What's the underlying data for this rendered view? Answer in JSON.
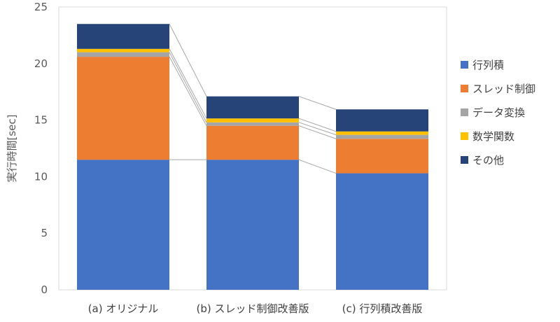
{
  "chart_data": {
    "type": "bar",
    "stacked": true,
    "categories": [
      "(a) オリジナル",
      "(b) スレッド制御改善版",
      "(c) 行列積改善版"
    ],
    "series": [
      {
        "name": "行列積",
        "color": "#4472C4",
        "values": [
          11.5,
          11.5,
          10.3
        ]
      },
      {
        "name": "スレッド制御",
        "color": "#ED7D31",
        "values": [
          9.1,
          3.0,
          3.05
        ]
      },
      {
        "name": "データ変換",
        "color": "#A5A5A5",
        "values": [
          0.4,
          0.3,
          0.35
        ]
      },
      {
        "name": "数学関数",
        "color": "#FFC000",
        "values": [
          0.3,
          0.35,
          0.3
        ]
      },
      {
        "name": "その他",
        "color": "#264478",
        "values": [
          2.2,
          1.95,
          1.95
        ]
      }
    ],
    "title": "",
    "xlabel": "",
    "ylabel": "実行時間[sec]",
    "ylim": [
      0,
      25
    ],
    "yticks": [
      0,
      5,
      10,
      15,
      20,
      25
    ],
    "grid": false,
    "series_lines": true,
    "legend_position": "right"
  }
}
